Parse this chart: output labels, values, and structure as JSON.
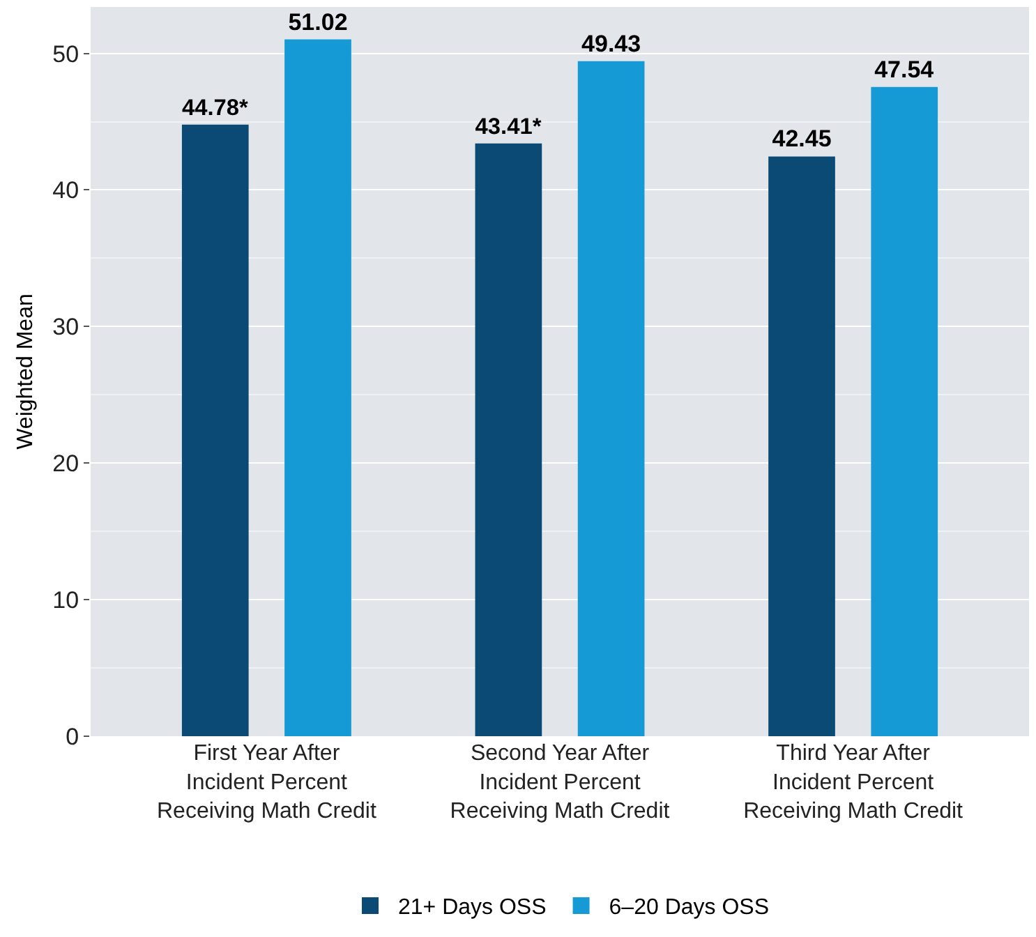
{
  "chart_data": {
    "type": "bar",
    "ylabel": "Weighted Mean",
    "categories": [
      "First Year After Incident Percent Receiving Math Credit",
      "Second Year After Incident Percent Receiving Math Credit",
      "Third Year After Incident Percent Receiving Math Credit"
    ],
    "series": [
      {
        "name": "21+ Days OSS",
        "color": "#0b4a74",
        "values": [
          44.78,
          43.41,
          42.45
        ],
        "value_labels": [
          "44.78*",
          "43.41*",
          "42.45"
        ]
      },
      {
        "name": "6–20 Days OSS",
        "color": "#159ad6",
        "values": [
          51.02,
          49.43,
          47.54
        ],
        "value_labels": [
          "51.02",
          "49.43",
          "47.54"
        ]
      }
    ],
    "ylim": [
      0,
      53.4
    ],
    "yticks": [
      0,
      10,
      20,
      30,
      40,
      50
    ],
    "grid": "y",
    "legend": "bottom"
  }
}
